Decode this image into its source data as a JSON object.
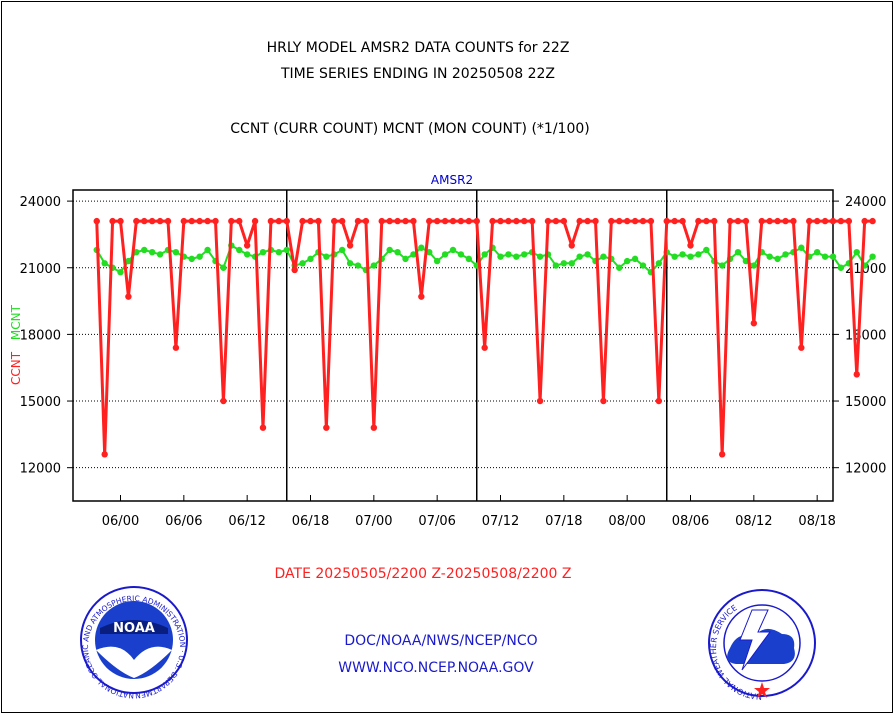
{
  "header": {
    "title_line1": "HRLY MODEL AMSR2 DATA COUNTS for 22Z",
    "title_line2": "TIME SERIES ENDING IN 20250508 22Z",
    "subtitle": "CCNT (CURR COUNT) MCNT (MON COUNT) (*1/100)"
  },
  "footer": {
    "date_range": "DATE 20250505/2200 Z-20250508/2200 Z",
    "org_line": "DOC/NOAA/NWS/NCEP/NCO",
    "url_line": "WWW.NCO.NCEP.NOAA.GOV"
  },
  "logos": {
    "noaa_text": "NOAA",
    "noaa_ring": "NATIONAL OCEANIC AND ATMOSPHERIC ADMINISTRATION · U.S. DEPARTMENT OF COMMERCE ·",
    "nws_ring": "NATIONAL WEATHER SERVICE"
  },
  "colors": {
    "ccnt": "#ff2020",
    "mcnt": "#22dd22",
    "axis_title": "#0000cc",
    "footer_red": "#ff2020",
    "footer_blue": "#1a1acc"
  },
  "chart_data": {
    "type": "line",
    "title": "AMSR2",
    "ylabel_left": "CCNT",
    "ylabel_right": "MCNT",
    "ylim": [
      10500,
      24500
    ],
    "yticks": [
      12000,
      15000,
      18000,
      21000,
      24000
    ],
    "ytick_labels": [
      "12000",
      "15000",
      "18000",
      "21000",
      "24000"
    ],
    "xlim": [
      -3,
      93
    ],
    "xticks": [
      3,
      11,
      19,
      27,
      35,
      43,
      51,
      59,
      67,
      75,
      83,
      91
    ],
    "xtick_labels": [
      "06/00",
      "06/06",
      "06/12",
      "06/18",
      "07/00",
      "07/06",
      "07/12",
      "07/18",
      "08/00",
      "08/06",
      "08/12",
      "08/18"
    ],
    "day_boundaries": [
      24,
      48,
      72
    ],
    "grid": "horizontal dotted",
    "series": [
      {
        "name": "CCNT",
        "values": [
          23100,
          12600,
          23100,
          23100,
          19700,
          23100,
          23100,
          23100,
          23100,
          23100,
          17400,
          23100,
          23100,
          23100,
          23100,
          23100,
          15000,
          23100,
          23100,
          22000,
          23100,
          13800,
          23100,
          23100,
          23100,
          20900,
          23100,
          23100,
          23100,
          13800,
          23100,
          23100,
          22000,
          23100,
          23100,
          13800,
          23100,
          23100,
          23100,
          23100,
          23100,
          19700,
          23100,
          23100,
          23100,
          23100,
          23100,
          23100,
          23100,
          17400,
          23100,
          23100,
          23100,
          23100,
          23100,
          23100,
          15000,
          23100,
          23100,
          23100,
          22000,
          23100,
          23100,
          23100,
          15000,
          23100,
          23100,
          23100,
          23100,
          23100,
          23100,
          15000,
          23100,
          23100,
          23100,
          22000,
          23100,
          23100,
          23100,
          12600,
          23100,
          23100,
          23100,
          18500,
          23100,
          23100,
          23100,
          23100,
          23100,
          17400,
          23100,
          23100,
          23100,
          23100,
          23100,
          23100,
          16200,
          23100,
          23100
        ]
      },
      {
        "name": "MCNT",
        "values": [
          21800,
          21200,
          21000,
          20800,
          21300,
          21700,
          21800,
          21700,
          21600,
          21800,
          21700,
          21500,
          21400,
          21500,
          21800,
          21300,
          21000,
          22000,
          21800,
          21600,
          21500,
          21700,
          21800,
          21700,
          21800,
          21100,
          21200,
          21400,
          21700,
          21500,
          21600,
          21800,
          21200,
          21100,
          20900,
          21100,
          21400,
          21800,
          21700,
          21400,
          21600,
          21900,
          21700,
          21300,
          21600,
          21800,
          21600,
          21400,
          21100,
          21600,
          21900,
          21500,
          21600,
          21500,
          21600,
          21700,
          21500,
          21600,
          21100,
          21200,
          21200,
          21500,
          21600,
          21300,
          21500,
          21400,
          21000,
          21300,
          21400,
          21100,
          20800,
          21200,
          21700,
          21500,
          21600,
          21500,
          21600,
          21800,
          21300,
          21100,
          21400,
          21700,
          21300,
          21100,
          21700,
          21500,
          21400,
          21600,
          21700,
          21900,
          21500,
          21700,
          21500,
          21500,
          21000,
          21200,
          21700,
          21100,
          21500
        ]
      }
    ]
  }
}
